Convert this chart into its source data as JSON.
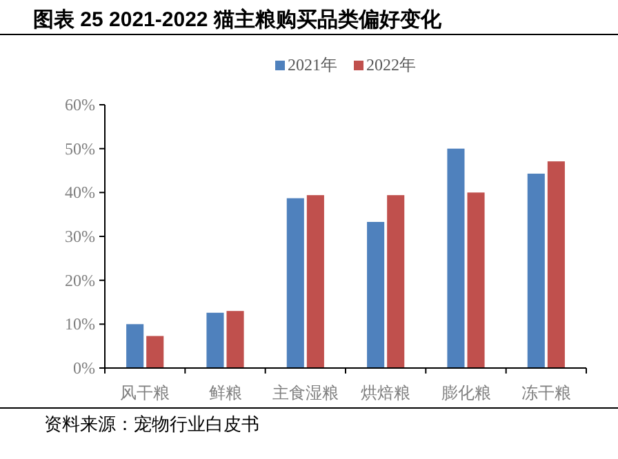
{
  "chart_data": {
    "type": "bar",
    "title": "图表 25 2021-2022 猫主粮购买品类偏好变化",
    "categories": [
      "风干粮",
      "鲜粮",
      "主食湿粮",
      "烘焙粮",
      "膨化粮",
      "冻干粮"
    ],
    "series": [
      {
        "name": "2021年",
        "color": "#4f81bd",
        "values": [
          10.0,
          12.6,
          38.7,
          33.3,
          50.0,
          44.3
        ]
      },
      {
        "name": "2022年",
        "color": "#c0504d",
        "values": [
          7.3,
          13.0,
          39.4,
          39.4,
          40.0,
          47.1
        ]
      }
    ],
    "ylim": [
      0,
      60
    ],
    "yticks": [
      {
        "value": 0,
        "label": "0%"
      },
      {
        "value": 10,
        "label": "10%"
      },
      {
        "value": 20,
        "label": "20%"
      },
      {
        "value": 30,
        "label": "30%"
      },
      {
        "value": 40,
        "label": "40%"
      },
      {
        "value": 50,
        "label": "50%"
      },
      {
        "value": 60,
        "label": "60%"
      }
    ],
    "legend": "top",
    "grid": false,
    "annotations": [
      "资料来源：宠物行业白皮书"
    ]
  }
}
